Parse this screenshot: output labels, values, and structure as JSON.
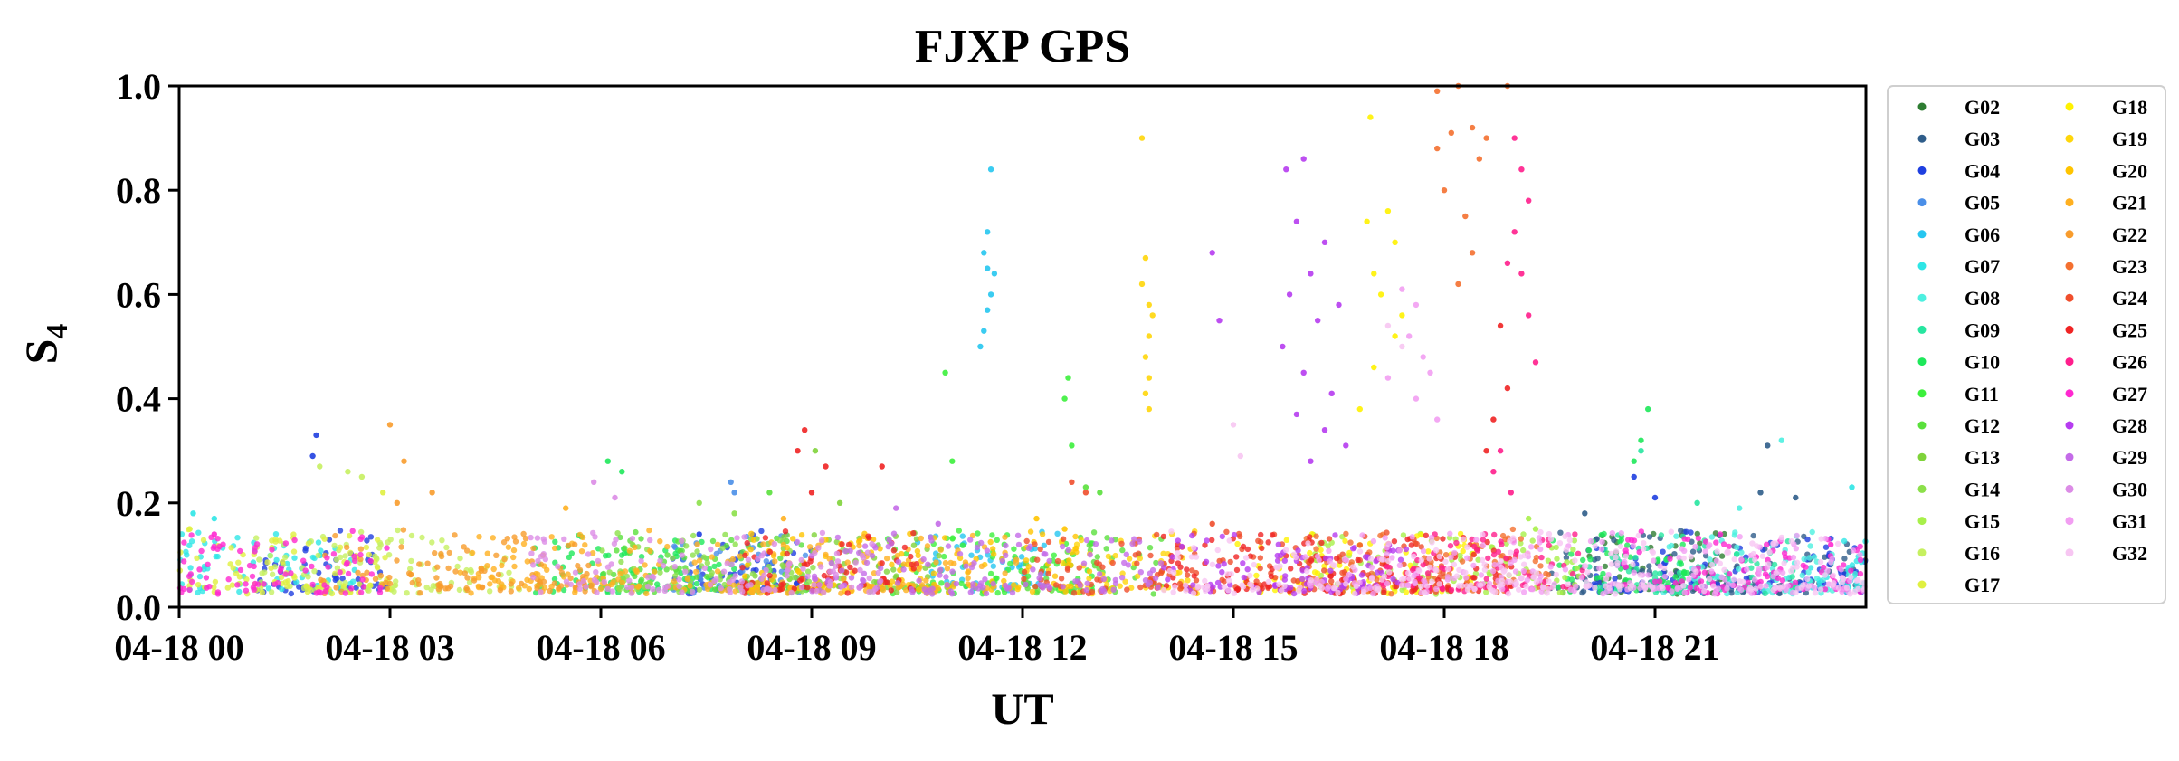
{
  "chart_data": {
    "type": "scatter",
    "title": "FJXP GPS",
    "xlabel": "UT",
    "ylabel_main": "S",
    "ylabel_sub": "4",
    "ylim": [
      0,
      1.0
    ],
    "yticks": [
      "0.0",
      "0.2",
      "0.4",
      "0.6",
      "0.8",
      "1.0"
    ],
    "ytick_values": [
      0,
      0.2,
      0.4,
      0.6,
      0.8,
      1.0
    ],
    "xlim_hours": [
      0,
      24
    ],
    "xticks": [
      "04-18 00",
      "04-18 03",
      "04-18 06",
      "04-18 09",
      "04-18 12",
      "04-18 15",
      "04-18 18",
      "04-18 21"
    ],
    "xtick_hours": [
      0,
      3,
      6,
      9,
      12,
      15,
      18,
      21
    ],
    "grid": false,
    "legend_position": "right, outside plot",
    "series": [
      {
        "name": "G02",
        "color": "#2e7d32",
        "active": [
          [
            20.0,
            22.0
          ]
        ],
        "peaks": []
      },
      {
        "name": "G03",
        "color": "#2f5d8a",
        "active": [
          [
            19.5,
            24.0
          ]
        ],
        "peaks": [
          [
            22.6,
            0.31
          ],
          [
            20.0,
            0.18
          ],
          [
            22.5,
            0.22
          ],
          [
            23.0,
            0.21
          ]
        ]
      },
      {
        "name": "G04",
        "color": "#1f3fe0",
        "active": [
          [
            1.0,
            3.0
          ],
          [
            7.0,
            9.0
          ],
          [
            20.0,
            24.0
          ]
        ],
        "peaks": [
          [
            1.95,
            0.33
          ],
          [
            1.9,
            0.29
          ],
          [
            20.7,
            0.25
          ],
          [
            21.0,
            0.21
          ],
          [
            7.4,
            0.14
          ]
        ]
      },
      {
        "name": "G05",
        "color": "#4a8fe8",
        "active": [
          [
            7.0,
            9.0
          ]
        ],
        "peaks": [
          [
            7.85,
            0.24
          ],
          [
            7.9,
            0.22
          ]
        ]
      },
      {
        "name": "G06",
        "color": "#26c6f0",
        "active": [
          [
            10.5,
            12.5
          ]
        ],
        "peaks": [
          [
            11.55,
            0.84
          ],
          [
            11.5,
            0.72
          ],
          [
            11.45,
            0.68
          ],
          [
            11.5,
            0.65
          ],
          [
            11.6,
            0.64
          ],
          [
            11.55,
            0.6
          ],
          [
            11.5,
            0.57
          ],
          [
            11.45,
            0.53
          ],
          [
            11.4,
            0.5
          ]
        ]
      },
      {
        "name": "G07",
        "color": "#2ee6e6",
        "active": [
          [
            0.0,
            2.5
          ],
          [
            23.0,
            24.0
          ]
        ],
        "peaks": [
          [
            0.2,
            0.18
          ],
          [
            0.5,
            0.17
          ],
          [
            23.8,
            0.23
          ]
        ]
      },
      {
        "name": "G08",
        "color": "#4df0e0",
        "active": [
          [
            21.0,
            24.0
          ]
        ],
        "peaks": [
          [
            22.8,
            0.32
          ],
          [
            22.2,
            0.19
          ]
        ]
      },
      {
        "name": "G09",
        "color": "#27e6a0",
        "active": [
          [
            20.0,
            23.0
          ]
        ],
        "peaks": [
          [
            20.8,
            0.3
          ],
          [
            21.6,
            0.2
          ]
        ]
      },
      {
        "name": "G10",
        "color": "#1ee85a",
        "active": [
          [
            5.0,
            8.0
          ],
          [
            19.5,
            21.5
          ]
        ],
        "peaks": [
          [
            6.1,
            0.28
          ],
          [
            6.3,
            0.26
          ],
          [
            20.9,
            0.38
          ],
          [
            20.8,
            0.32
          ],
          [
            20.7,
            0.28
          ]
        ]
      },
      {
        "name": "G11",
        "color": "#3cf03c",
        "active": [
          [
            10.0,
            13.0
          ]
        ],
        "peaks": [
          [
            10.9,
            0.45
          ],
          [
            11.0,
            0.28
          ],
          [
            12.65,
            0.44
          ],
          [
            12.6,
            0.4
          ],
          [
            12.7,
            0.31
          ]
        ]
      },
      {
        "name": "G12",
        "color": "#5ae03c",
        "active": [
          [
            6.0,
            9.0
          ],
          [
            12.0,
            14.0
          ]
        ],
        "peaks": [
          [
            8.4,
            0.22
          ],
          [
            12.9,
            0.23
          ],
          [
            13.1,
            0.22
          ]
        ]
      },
      {
        "name": "G13",
        "color": "#7fd33a",
        "active": [
          [
            8.0,
            11.0
          ]
        ],
        "peaks": [
          [
            9.05,
            0.3
          ],
          [
            9.4,
            0.2
          ]
        ]
      },
      {
        "name": "G14",
        "color": "#8ce04a",
        "active": [
          [
            6.0,
            9.5
          ]
        ],
        "peaks": [
          [
            7.4,
            0.2
          ],
          [
            7.9,
            0.18
          ]
        ]
      },
      {
        "name": "G15",
        "color": "#a8f04a",
        "active": [
          [
            16.0,
            20.0
          ]
        ],
        "peaks": [
          [
            19.2,
            0.17
          ],
          [
            19.3,
            0.15
          ]
        ]
      },
      {
        "name": "G16",
        "color": "#c6f060",
        "active": [
          [
            1.0,
            5.0
          ]
        ],
        "peaks": [
          [
            2.0,
            0.27
          ],
          [
            2.4,
            0.26
          ],
          [
            2.6,
            0.25
          ]
        ]
      },
      {
        "name": "G17",
        "color": "#e0f040",
        "active": [
          [
            0.0,
            3.0
          ]
        ],
        "peaks": [
          [
            0.15,
            0.15
          ],
          [
            2.9,
            0.22
          ]
        ]
      },
      {
        "name": "G18",
        "color": "#fff200",
        "active": [
          [
            15.0,
            18.5
          ]
        ],
        "peaks": [
          [
            16.95,
            0.94
          ],
          [
            17.2,
            0.76
          ],
          [
            16.9,
            0.74
          ],
          [
            17.3,
            0.7
          ],
          [
            17.0,
            0.64
          ],
          [
            17.1,
            0.6
          ],
          [
            17.4,
            0.56
          ],
          [
            17.3,
            0.52
          ],
          [
            17.0,
            0.46
          ],
          [
            16.8,
            0.38
          ]
        ]
      },
      {
        "name": "G19",
        "color": "#ffd60a",
        "active": [
          [
            12.5,
            14.5
          ]
        ],
        "peaks": [
          [
            13.7,
            0.9
          ],
          [
            13.75,
            0.67
          ],
          [
            13.7,
            0.62
          ],
          [
            13.8,
            0.58
          ],
          [
            13.85,
            0.56
          ],
          [
            13.8,
            0.52
          ],
          [
            13.75,
            0.48
          ],
          [
            13.8,
            0.44
          ],
          [
            13.75,
            0.41
          ],
          [
            13.8,
            0.38
          ]
        ]
      },
      {
        "name": "G20",
        "color": "#ffc400",
        "active": [
          [
            8.0,
            13.0
          ]
        ],
        "peaks": [
          [
            12.2,
            0.17
          ],
          [
            12.6,
            0.15
          ]
        ]
      },
      {
        "name": "G21",
        "color": "#ffb020",
        "active": [
          [
            4.0,
            12.0
          ]
        ],
        "peaks": [
          [
            5.5,
            0.19
          ],
          [
            8.6,
            0.17
          ]
        ]
      },
      {
        "name": "G22",
        "color": "#f89c2c",
        "active": [
          [
            2.0,
            6.0
          ]
        ],
        "peaks": [
          [
            3.0,
            0.35
          ],
          [
            3.2,
            0.28
          ],
          [
            3.6,
            0.22
          ],
          [
            3.1,
            0.2
          ]
        ]
      },
      {
        "name": "G23",
        "color": "#f47030",
        "active": [
          [
            16.0,
            19.5
          ]
        ],
        "peaks": [
          [
            18.2,
            1.0
          ],
          [
            18.9,
            1.0
          ],
          [
            17.9,
            0.99
          ],
          [
            18.1,
            0.91
          ],
          [
            18.4,
            0.92
          ],
          [
            17.9,
            0.88
          ],
          [
            18.6,
            0.9
          ],
          [
            18.0,
            0.8
          ],
          [
            18.5,
            0.86
          ],
          [
            18.3,
            0.75
          ],
          [
            18.4,
            0.68
          ],
          [
            18.2,
            0.62
          ]
        ]
      },
      {
        "name": "G24",
        "color": "#f04e2c",
        "active": [
          [
            12.0,
            18.0
          ]
        ],
        "peaks": [
          [
            12.7,
            0.24
          ],
          [
            12.9,
            0.22
          ],
          [
            14.7,
            0.16
          ]
        ]
      },
      {
        "name": "G25",
        "color": "#f02424",
        "active": [
          [
            8.0,
            10.5
          ],
          [
            14.0,
            19.0
          ]
        ],
        "peaks": [
          [
            8.9,
            0.34
          ],
          [
            8.8,
            0.3
          ],
          [
            9.2,
            0.27
          ],
          [
            9.0,
            0.22
          ],
          [
            10.0,
            0.27
          ],
          [
            18.8,
            0.54
          ],
          [
            18.9,
            0.42
          ],
          [
            18.7,
            0.36
          ],
          [
            18.6,
            0.3
          ]
        ]
      },
      {
        "name": "G26",
        "color": "#ff1e8c",
        "active": [
          [
            17.0,
            20.0
          ]
        ],
        "peaks": [
          [
            19.0,
            0.9
          ],
          [
            19.1,
            0.84
          ],
          [
            19.2,
            0.78
          ],
          [
            19.0,
            0.72
          ],
          [
            18.9,
            0.66
          ],
          [
            19.1,
            0.64
          ],
          [
            19.2,
            0.56
          ],
          [
            19.3,
            0.47
          ],
          [
            18.8,
            0.3
          ],
          [
            18.7,
            0.26
          ],
          [
            18.95,
            0.22
          ]
        ]
      },
      {
        "name": "G27",
        "color": "#ff28d0",
        "active": [
          [
            0.0,
            3.0
          ],
          [
            20.5,
            24.0
          ]
        ],
        "peaks": [
          [
            0.5,
            0.14
          ],
          [
            23.5,
            0.12
          ]
        ]
      },
      {
        "name": "G28",
        "color": "#b63cf0",
        "active": [
          [
            14.0,
            17.5
          ]
        ],
        "peaks": [
          [
            15.75,
            0.84
          ],
          [
            16.0,
            0.86
          ],
          [
            15.9,
            0.74
          ],
          [
            16.3,
            0.7
          ],
          [
            16.1,
            0.64
          ],
          [
            15.8,
            0.6
          ],
          [
            16.5,
            0.58
          ],
          [
            16.2,
            0.55
          ],
          [
            15.7,
            0.5
          ],
          [
            16.0,
            0.45
          ],
          [
            16.4,
            0.41
          ],
          [
            15.9,
            0.37
          ],
          [
            16.3,
            0.34
          ],
          [
            16.6,
            0.31
          ],
          [
            16.1,
            0.28
          ],
          [
            14.7,
            0.68
          ],
          [
            14.8,
            0.55
          ]
        ]
      },
      {
        "name": "G29",
        "color": "#c46be8",
        "active": [
          [
            9.0,
            14.0
          ]
        ],
        "peaks": [
          [
            10.2,
            0.19
          ],
          [
            10.8,
            0.16
          ]
        ]
      },
      {
        "name": "G30",
        "color": "#dc8ce6",
        "active": [
          [
            5.0,
            10.0
          ]
        ],
        "peaks": [
          [
            5.9,
            0.24
          ],
          [
            6.2,
            0.21
          ]
        ]
      },
      {
        "name": "G31",
        "color": "#f29ef2",
        "active": [
          [
            16.0,
            24.0
          ]
        ],
        "peaks": [
          [
            17.4,
            0.61
          ],
          [
            17.6,
            0.58
          ],
          [
            17.5,
            0.52
          ],
          [
            17.7,
            0.48
          ],
          [
            17.8,
            0.45
          ],
          [
            17.2,
            0.44
          ],
          [
            17.6,
            0.4
          ],
          [
            17.9,
            0.36
          ]
        ]
      },
      {
        "name": "G32",
        "color": "#f7c6f2",
        "active": [
          [
            14.0,
            24.0
          ]
        ],
        "peaks": [
          [
            15.0,
            0.35
          ],
          [
            15.1,
            0.29
          ],
          [
            17.2,
            0.54
          ],
          [
            17.4,
            0.5
          ]
        ]
      }
    ]
  }
}
